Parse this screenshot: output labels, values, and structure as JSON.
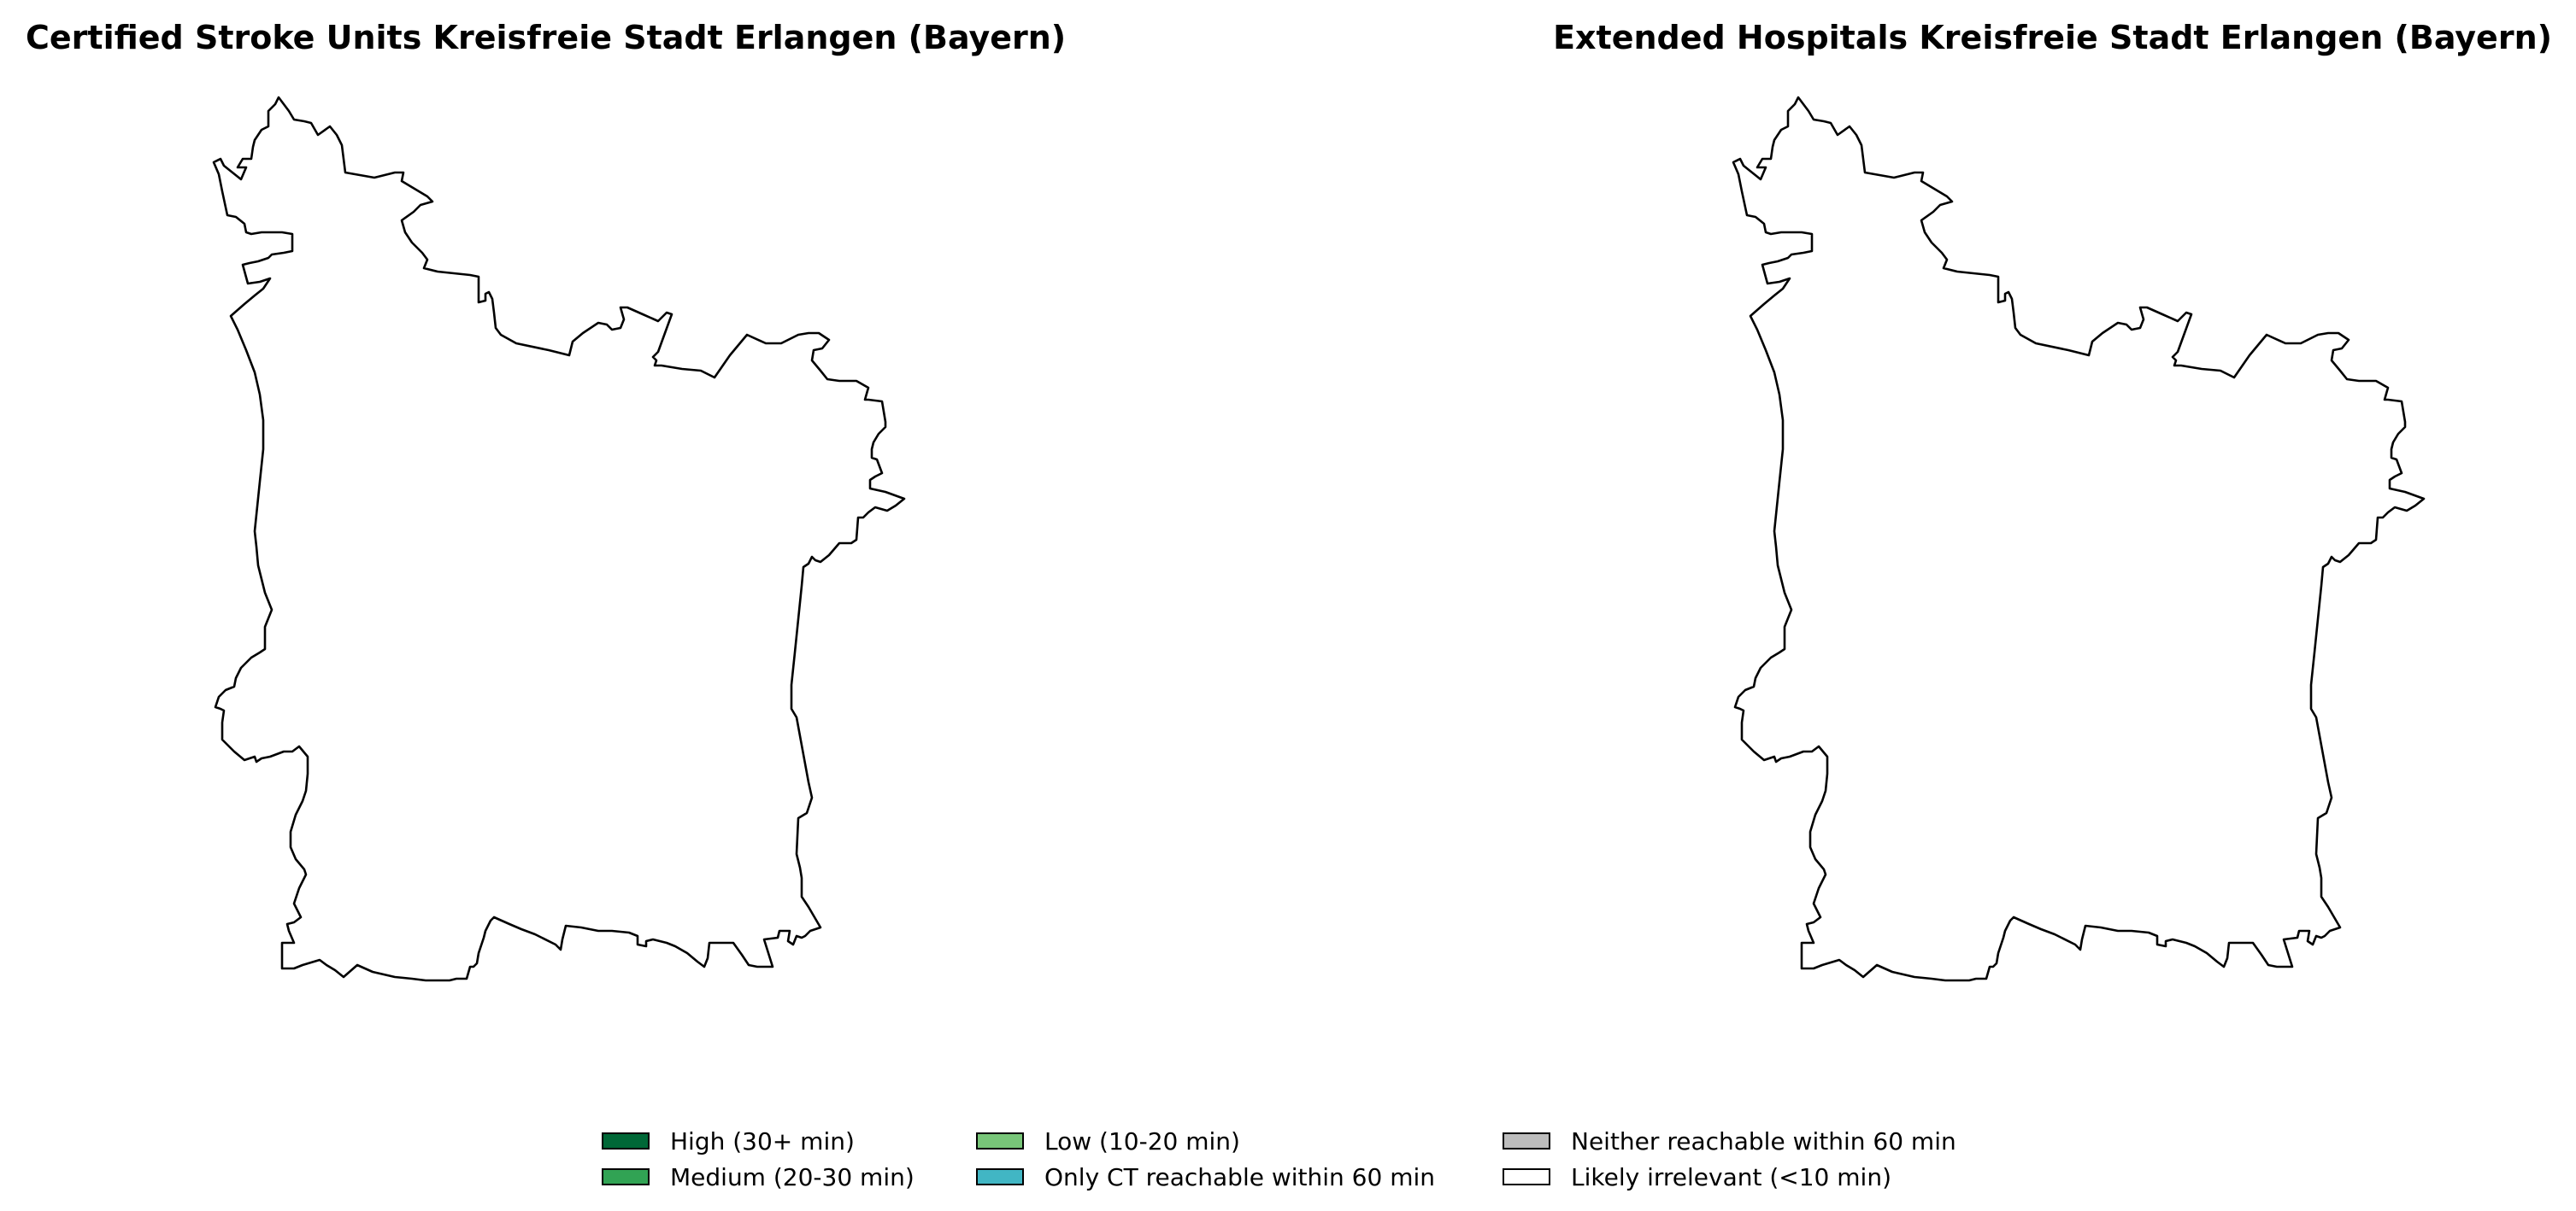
{
  "maps": [
    {
      "title": "Certified Stroke Units Kreisfreie Stadt Erlangen (Bayern)",
      "fill_color": "#ffffff",
      "outline_color": "#000000"
    },
    {
      "title": "Extended Hospitals Kreisfreie Stadt Erlangen (Bayern)",
      "fill_color": "#ffffff",
      "outline_color": "#000000"
    }
  ],
  "legend": {
    "placement": "bottom-center",
    "items": [
      {
        "label": "High (30+ min)",
        "color": "#006837"
      },
      {
        "label": "Medium (20-30 min)",
        "color": "#31a354"
      },
      {
        "label": "Low (10-20 min)",
        "color": "#78c679"
      },
      {
        "label": "Only CT reachable within 60 min",
        "color": "#41b6c4"
      },
      {
        "label": "Neither reachable within 60 min",
        "color": "#bdbdbd"
      },
      {
        "label": "Likely irrelevant (<10 min)",
        "color": "#ffffff"
      }
    ]
  }
}
